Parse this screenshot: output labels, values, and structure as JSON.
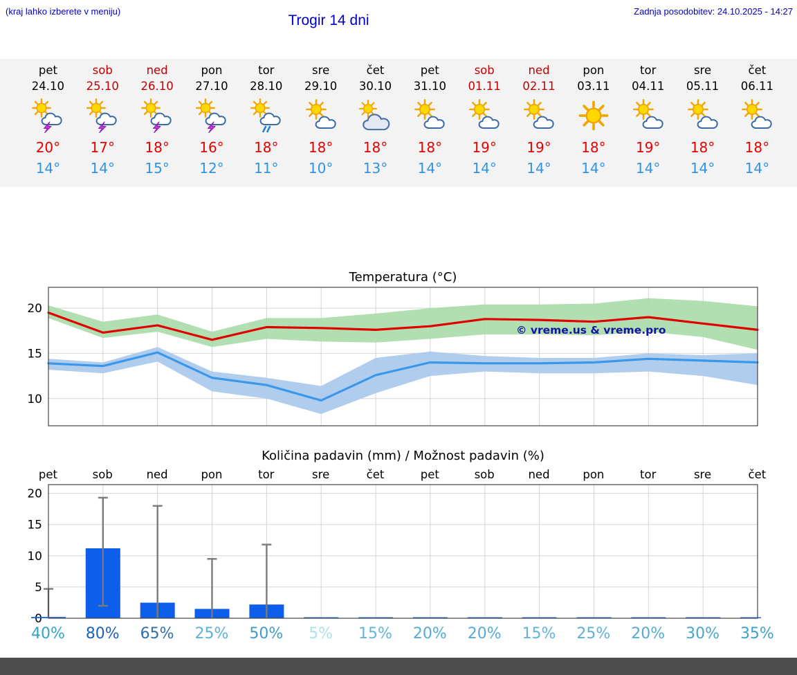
{
  "header": {
    "note": "(kraj lahko izberete v meniju)",
    "title": "Trogir 14 dni",
    "updated": "Zadnja posodobitev: 24.10.2025 - 14:27"
  },
  "watermark": "© vreme.us & vreme.pro",
  "colors": {
    "accent_blue": "#0000cd",
    "temp_max_red": "#e60000",
    "temp_min_blue": "#2f93e8",
    "weekend_red": "#c40000",
    "strip_bg": "#f3f3f3",
    "bar_blue": "#0d5eea"
  },
  "forecast": {
    "days": [
      {
        "name": "pet",
        "date": "24.10",
        "weekend": false,
        "icon": "thunder",
        "tmax": "20°",
        "tmin": "14°"
      },
      {
        "name": "sob",
        "date": "25.10",
        "weekend": true,
        "icon": "thunder",
        "tmax": "17°",
        "tmin": "14°"
      },
      {
        "name": "ned",
        "date": "26.10",
        "weekend": true,
        "icon": "thunder",
        "tmax": "18°",
        "tmin": "15°"
      },
      {
        "name": "pon",
        "date": "27.10",
        "weekend": false,
        "icon": "thunder",
        "tmax": "16°",
        "tmin": "12°"
      },
      {
        "name": "tor",
        "date": "28.10",
        "weekend": false,
        "icon": "rain",
        "tmax": "18°",
        "tmin": "11°"
      },
      {
        "name": "sre",
        "date": "29.10",
        "weekend": false,
        "icon": "partly",
        "tmax": "18°",
        "tmin": "10°"
      },
      {
        "name": "čet",
        "date": "30.10",
        "weekend": false,
        "icon": "cloudy",
        "tmax": "18°",
        "tmin": "13°"
      },
      {
        "name": "pet",
        "date": "31.10",
        "weekend": false,
        "icon": "partly",
        "tmax": "18°",
        "tmin": "14°"
      },
      {
        "name": "sob",
        "date": "01.11",
        "weekend": true,
        "icon": "partly",
        "tmax": "19°",
        "tmin": "14°"
      },
      {
        "name": "ned",
        "date": "02.11",
        "weekend": true,
        "icon": "partly",
        "tmax": "19°",
        "tmin": "14°"
      },
      {
        "name": "pon",
        "date": "03.11",
        "weekend": false,
        "icon": "sun",
        "tmax": "18°",
        "tmin": "14°"
      },
      {
        "name": "tor",
        "date": "04.11",
        "weekend": false,
        "icon": "partly",
        "tmax": "19°",
        "tmin": "14°"
      },
      {
        "name": "sre",
        "date": "05.11",
        "weekend": false,
        "icon": "partly",
        "tmax": "18°",
        "tmin": "14°"
      },
      {
        "name": "čet",
        "date": "06.11",
        "weekend": false,
        "icon": "partly",
        "tmax": "18°",
        "tmin": "14°"
      }
    ]
  },
  "chart_data": [
    {
      "type": "line",
      "title": "Temperatura (°C)",
      "x_labels": [
        "pet",
        "sob",
        "ned",
        "pon",
        "tor",
        "sre",
        "čet",
        "pet",
        "sob",
        "ned",
        "pon",
        "tor",
        "sre",
        "čet"
      ],
      "ylim": [
        7,
        22.3
      ],
      "yticks": [
        10,
        15,
        20
      ],
      "grid": true,
      "series": [
        {
          "name": "max temperature",
          "color": "#e10000",
          "values": [
            19.5,
            17.3,
            18.1,
            16.5,
            17.9,
            17.8,
            17.6,
            18.0,
            18.8,
            18.7,
            18.5,
            19.0,
            18.3,
            17.6
          ]
        },
        {
          "name": "min temperature",
          "color": "#3b97ea",
          "values": [
            13.9,
            13.6,
            15.1,
            12.3,
            11.5,
            9.8,
            12.6,
            14.0,
            13.9,
            13.9,
            14.0,
            14.4,
            14.2,
            14.0
          ]
        }
      ],
      "bands": [
        {
          "name": "max range",
          "color": "#a9dca9",
          "upper": [
            20.3,
            18.5,
            19.3,
            17.4,
            18.9,
            18.9,
            19.4,
            20.0,
            20.4,
            20.4,
            20.5,
            21.1,
            20.8,
            20.2
          ],
          "lower": [
            18.9,
            16.7,
            17.4,
            15.7,
            16.6,
            16.3,
            16.2,
            16.6,
            17.1,
            17.1,
            17.0,
            17.4,
            16.8,
            15.4
          ]
        },
        {
          "name": "min range",
          "color": "#a9c8ec",
          "upper": [
            14.4,
            14.0,
            15.7,
            13.0,
            12.3,
            11.4,
            14.5,
            15.2,
            14.7,
            14.5,
            14.5,
            15.0,
            14.8,
            15.0
          ],
          "lower": [
            13.2,
            12.8,
            14.1,
            10.8,
            10.0,
            8.3,
            10.6,
            12.5,
            13.0,
            12.8,
            12.8,
            13.0,
            12.5,
            11.5
          ]
        }
      ]
    },
    {
      "type": "bar",
      "title": "Količina padavin (mm) / Možnost padavin (%)",
      "x_labels": [
        "pet",
        "sob",
        "ned",
        "pon",
        "tor",
        "sre",
        "čet",
        "pet",
        "sob",
        "ned",
        "pon",
        "tor",
        "sre",
        "čet"
      ],
      "ylim": [
        0,
        21.4
      ],
      "yticks": [
        0,
        5,
        10,
        15,
        20
      ],
      "grid": true,
      "bar_color": "#0d5eea",
      "values": [
        0.2,
        11.2,
        2.5,
        1.5,
        2.2,
        0.1,
        0.1,
        0.1,
        0.1,
        0.1,
        0.1,
        0.15,
        0.1,
        0.1
      ],
      "whiskers": [
        {
          "low": 0,
          "high": 4.7
        },
        {
          "low": 2.0,
          "high": 19.3
        },
        {
          "low": 0,
          "high": 18.0
        },
        {
          "low": 0,
          "high": 9.5
        },
        {
          "low": 0,
          "high": 11.8
        },
        null,
        null,
        null,
        null,
        null,
        null,
        null,
        null,
        null
      ],
      "probabilities": [
        {
          "label": "40%",
          "color": "#35a4c4"
        },
        {
          "label": "80%",
          "color": "#1a63b8"
        },
        {
          "label": "65%",
          "color": "#2f6fae"
        },
        {
          "label": "25%",
          "color": "#5fb0d8"
        },
        {
          "label": "50%",
          "color": "#3f9dc8"
        },
        {
          "label": "5%",
          "color": "#abe2ea"
        },
        {
          "label": "15%",
          "color": "#62b4da"
        },
        {
          "label": "20%",
          "color": "#54acd4"
        },
        {
          "label": "20%",
          "color": "#54acd4"
        },
        {
          "label": "15%",
          "color": "#62b4da"
        },
        {
          "label": "25%",
          "color": "#5fb0d8"
        },
        {
          "label": "20%",
          "color": "#54acd4"
        },
        {
          "label": "30%",
          "color": "#48a6ce"
        },
        {
          "label": "35%",
          "color": "#3da0c8"
        }
      ]
    }
  ]
}
